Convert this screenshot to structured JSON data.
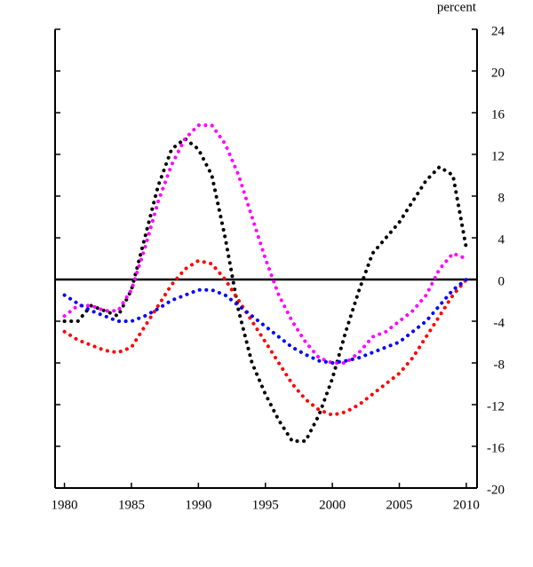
{
  "chart_data": {
    "type": "line",
    "y_label": "percent",
    "x": [
      1980,
      1981,
      1982,
      1983,
      1984,
      1985,
      1986,
      1987,
      1988,
      1989,
      1990,
      1991,
      1992,
      1993,
      1994,
      1995,
      1996,
      1997,
      1998,
      1999,
      2000,
      2001,
      2002,
      2003,
      2004,
      2005,
      2006,
      2007,
      2008,
      2009,
      2010
    ],
    "series": [
      {
        "color": "#000000",
        "values": [
          -4,
          -4,
          -2.5,
          -3,
          -3.5,
          -1,
          4,
          9,
          12.5,
          13.5,
          12.5,
          10,
          4,
          -3,
          -8,
          -11,
          -13.5,
          -15.5,
          -15.5,
          -13,
          -9.5,
          -5,
          -1,
          2.5,
          4,
          5.5,
          7.5,
          9.5,
          10.8,
          10,
          3
        ]
      },
      {
        "color": "#ff00ff",
        "values": [
          -3.5,
          -2.5,
          -2.5,
          -3,
          -3,
          -1,
          3,
          7.5,
          11,
          13.5,
          14.8,
          14.8,
          13,
          10,
          6,
          2,
          -1.5,
          -4,
          -6,
          -7.5,
          -8,
          -8,
          -7,
          -5.5,
          -5,
          -4,
          -3,
          -1.5,
          1,
          2.5,
          2
        ]
      },
      {
        "color": "#ff0000",
        "values": [
          -5,
          -5.8,
          -6.3,
          -6.8,
          -7,
          -6.5,
          -4.5,
          -2.5,
          -0.5,
          1,
          1.8,
          1.5,
          0,
          -2,
          -4,
          -6,
          -8,
          -10,
          -11.5,
          -12.5,
          -13,
          -12.7,
          -12,
          -11,
          -10,
          -9,
          -7.5,
          -5.5,
          -3.5,
          -1.5,
          0
        ]
      },
      {
        "color": "#0000ff",
        "values": [
          -1.5,
          -2.3,
          -3,
          -3.5,
          -4,
          -4,
          -3.5,
          -2.8,
          -2,
          -1.5,
          -1,
          -1,
          -1.5,
          -2.5,
          -3.5,
          -4.5,
          -5.5,
          -6.5,
          -7.2,
          -7.8,
          -8,
          -7.8,
          -7.5,
          -7,
          -6.5,
          -6,
          -5,
          -4,
          -2.5,
          -1,
          0
        ]
      }
    ],
    "xlim": [
      1979.3,
      2010.8
    ],
    "xticks": [
      1980,
      1985,
      1990,
      1995,
      2000,
      2005,
      2010
    ],
    "ylim": [
      -20,
      24
    ],
    "yticks": [
      -20,
      -16,
      -12,
      -8,
      -4,
      0,
      4,
      8,
      12,
      16,
      20,
      24
    ],
    "zero_line": true
  }
}
